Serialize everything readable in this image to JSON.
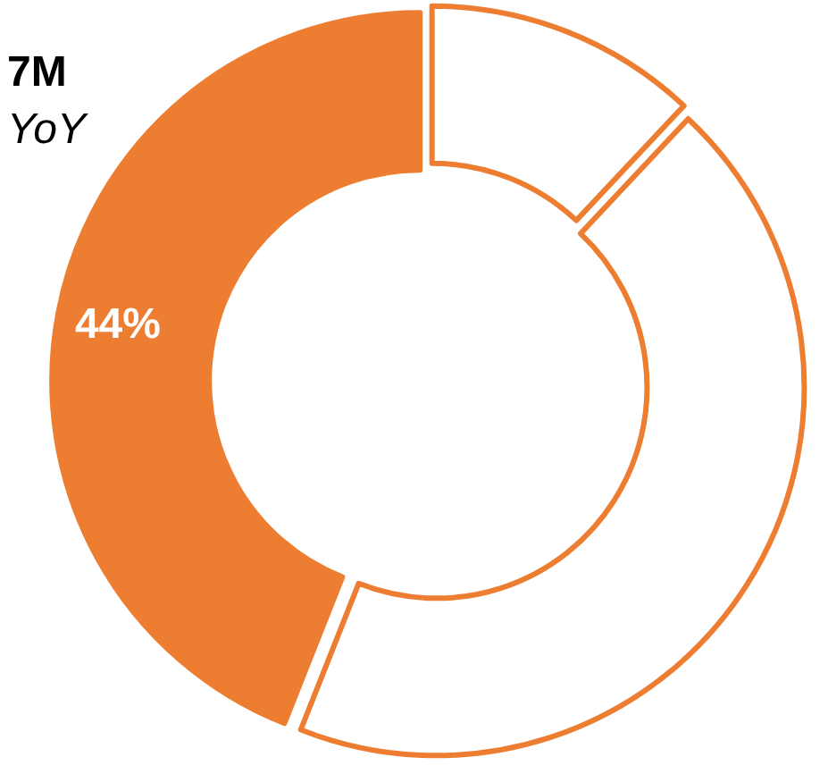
{
  "chart_data": {
    "type": "donut",
    "categories": [
      null,
      null,
      null
    ],
    "values": [
      12,
      44,
      44
    ],
    "colors": [
      "#ffffff",
      "#ffffff",
      "#ed7d31"
    ],
    "value_labels": [
      null,
      null,
      "44%"
    ],
    "annotations": [
      "7M",
      "YoY"
    ]
  }
}
